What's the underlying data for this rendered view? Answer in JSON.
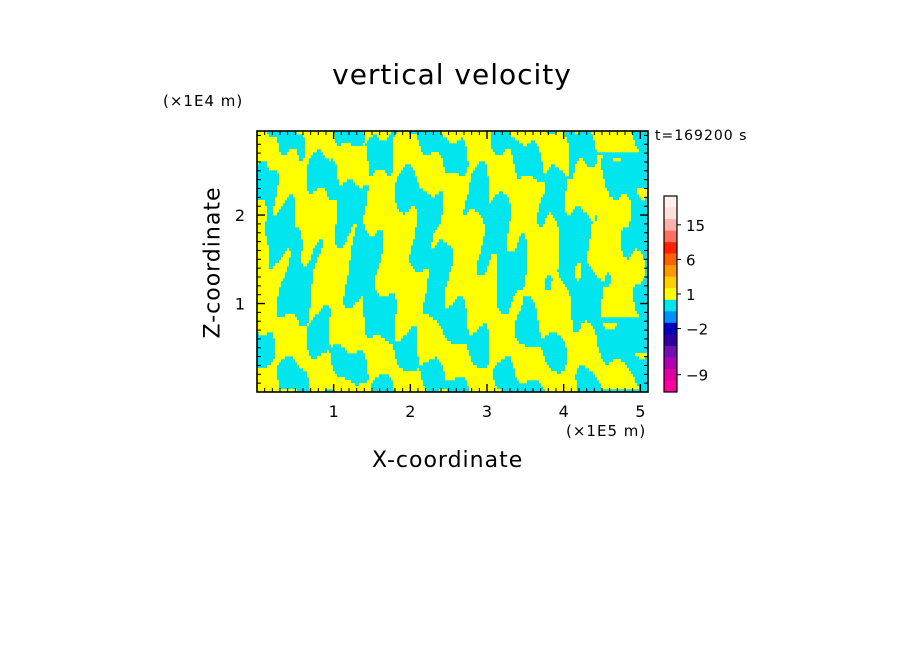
{
  "chart_data": {
    "type": "heatmap",
    "title": "vertical velocity",
    "xlabel": "X-coordinate",
    "ylabel": "Z-coordinate",
    "x_unit": "(×1E5 m)",
    "y_unit": "(×1E4 m)",
    "time_label": "t=169200 s",
    "xlim": [
      0,
      5.1
    ],
    "ylim": [
      0,
      2.95
    ],
    "x_ticks": [
      1,
      2,
      3,
      4,
      5
    ],
    "x_tick_labels": [
      "1",
      "2",
      "3",
      "4",
      "5"
    ],
    "y_ticks": [
      1,
      2
    ],
    "y_tick_labels": [
      "1",
      "2"
    ],
    "field_colors": {
      "positive": "#ffff00",
      "negative": "#00e5ee"
    },
    "colorbar": {
      "levels": [
        {
          "value": 21,
          "color": "#fff0ea"
        },
        {
          "value": 18,
          "color": "#ffe0d8"
        },
        {
          "value": 15,
          "color": "#ffb0aa"
        },
        {
          "value": 12,
          "color": "#ff7060"
        },
        {
          "value": 9,
          "color": "#ff2000"
        },
        {
          "value": 6,
          "color": "#ff6000"
        },
        {
          "value": 3,
          "color": "#ff9900"
        },
        {
          "value": 2,
          "color": "#ffd000"
        },
        {
          "value": 1,
          "color": "#ffff00"
        },
        {
          "value": 0,
          "color": "#00e5ee"
        },
        {
          "value": -1,
          "color": "#0090ff"
        },
        {
          "value": -2,
          "color": "#0000c0"
        },
        {
          "value": -3,
          "color": "#3000a0"
        },
        {
          "value": -5,
          "color": "#7010b0"
        },
        {
          "value": -7,
          "color": "#b000b0"
        },
        {
          "value": -9,
          "color": "#e000a0"
        },
        {
          "value": -11,
          "color": "#ff00a0"
        }
      ],
      "tick_labels": [
        "15",
        "6",
        "1",
        "−2",
        "−9"
      ],
      "tick_values": [
        15,
        6,
        1,
        -2,
        -9
      ]
    }
  }
}
